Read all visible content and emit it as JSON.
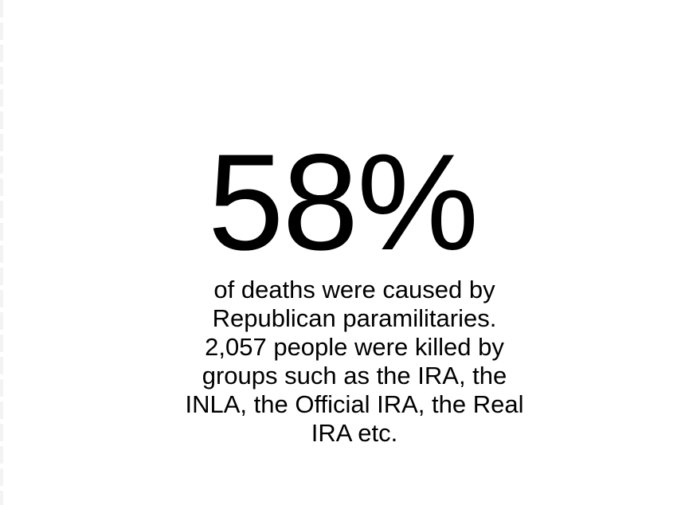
{
  "stat": {
    "value": "58%"
  },
  "description": {
    "lines": [
      "of deaths were caused by",
      "Republican paramilitaries.",
      "2,057 people were killed by",
      "groups such as the IRA, the",
      "INLA, the Official IRA, the Real",
      "IRA etc."
    ]
  },
  "colors": {
    "background": "#ffffff",
    "text": "#000000"
  }
}
